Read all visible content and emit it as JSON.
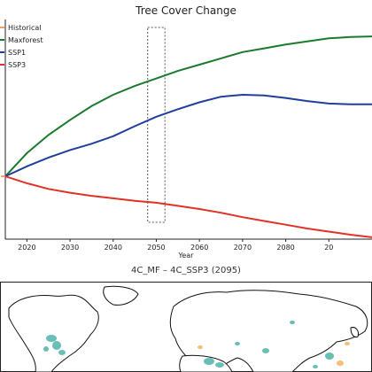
{
  "chart_data": {
    "type": "line",
    "title": "Tree Cover Change",
    "xlabel": "Year",
    "ylabel": "",
    "xlim": [
      2015,
      2100
    ],
    "ylim": [
      -1.0,
      2.5
    ],
    "xticks": [
      "2020",
      "2030",
      "2040",
      "2050",
      "2060",
      "2070",
      "2080",
      "20"
    ],
    "grid": false,
    "legend_placement": "top-left",
    "highlight_box": {
      "x_start": 2048,
      "x_end": 2052
    },
    "series": [
      {
        "name": "Historical",
        "color": "#f4a261",
        "x": [
          2014,
          2015
        ],
        "y": [
          0.0,
          0.0
        ]
      },
      {
        "name": "Maxforest",
        "color": "#1a7a2e",
        "x": [
          2015,
          2020,
          2025,
          2030,
          2035,
          2040,
          2045,
          2050,
          2055,
          2060,
          2065,
          2070,
          2075,
          2080,
          2085,
          2090,
          2095,
          2100
        ],
        "y": [
          0.0,
          0.37,
          0.66,
          0.9,
          1.12,
          1.3,
          1.44,
          1.56,
          1.68,
          1.78,
          1.88,
          1.98,
          2.04,
          2.1,
          2.15,
          2.2,
          2.22,
          2.23
        ]
      },
      {
        "name": "SSP1",
        "color": "#1f3f9a",
        "x": [
          2015,
          2020,
          2025,
          2030,
          2035,
          2040,
          2045,
          2050,
          2055,
          2060,
          2065,
          2070,
          2075,
          2080,
          2085,
          2090,
          2095,
          2100
        ],
        "y": [
          0.0,
          0.16,
          0.3,
          0.42,
          0.52,
          0.64,
          0.8,
          0.95,
          1.07,
          1.18,
          1.27,
          1.3,
          1.29,
          1.25,
          1.2,
          1.16,
          1.15,
          1.15
        ]
      },
      {
        "name": "SSP3",
        "color": "#e03226",
        "x": [
          2015,
          2020,
          2025,
          2030,
          2035,
          2040,
          2045,
          2050,
          2055,
          2060,
          2065,
          2070,
          2075,
          2080,
          2085,
          2090,
          2095,
          2100
        ],
        "y": [
          0.0,
          -0.11,
          -0.2,
          -0.26,
          -0.31,
          -0.35,
          -0.39,
          -0.42,
          -0.47,
          -0.52,
          -0.58,
          -0.65,
          -0.71,
          -0.77,
          -0.83,
          -0.88,
          -0.93,
          -0.97
        ]
      }
    ]
  },
  "map": {
    "title": "4C_MF – 4C_SSP3 (2095)",
    "colors": {
      "land": "#ffffff",
      "coast": "#111111",
      "positive": "#4fb3a9",
      "negative": "#f2b35c"
    }
  }
}
